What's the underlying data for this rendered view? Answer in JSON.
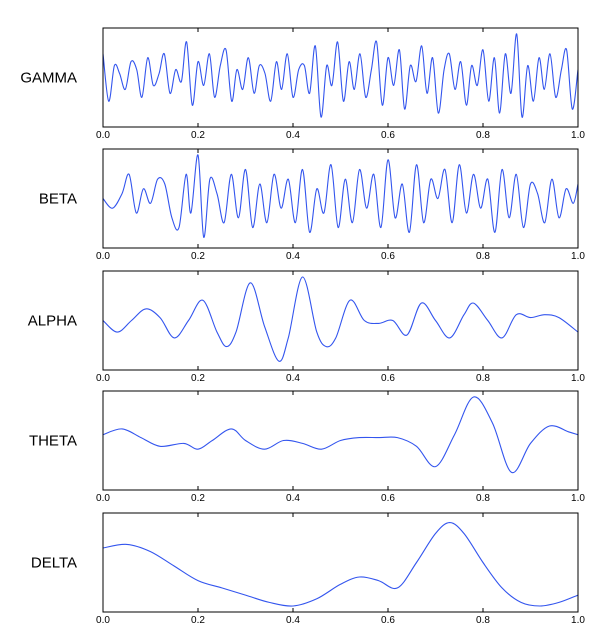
{
  "chart_data": [
    {
      "type": "line",
      "title": "",
      "ylabel": "GAMMA",
      "xlim": [
        0.0,
        1.0
      ],
      "xticks": [
        "0.0",
        "0.2",
        "0.4",
        "0.6",
        "0.8",
        "1.0"
      ],
      "grid": false,
      "series_color": "#3355ee",
      "note_y_scale_hidden": true,
      "series": [
        {
          "x": [
            0,
            0.012,
            0.024,
            0.035,
            0.047,
            0.059,
            0.071,
            0.082,
            0.094,
            0.106,
            0.118,
            0.129,
            0.141,
            0.153,
            0.165,
            0.176,
            0.188,
            0.2,
            0.212,
            0.224,
            0.235,
            0.247,
            0.259,
            0.271,
            0.282,
            0.294,
            0.306,
            0.318,
            0.329,
            0.341,
            0.353,
            0.365,
            0.376,
            0.388,
            0.4,
            0.412,
            0.424,
            0.435,
            0.447,
            0.459,
            0.471,
            0.482,
            0.494,
            0.506,
            0.518,
            0.529,
            0.541,
            0.553,
            0.565,
            0.576,
            0.588,
            0.6,
            0.612,
            0.624,
            0.635,
            0.647,
            0.659,
            0.671,
            0.682,
            0.694,
            0.706,
            0.718,
            0.729,
            0.741,
            0.753,
            0.765,
            0.776,
            0.788,
            0.8,
            0.812,
            0.824,
            0.835,
            0.847,
            0.859,
            0.871,
            0.882,
            0.894,
            0.906,
            0.918,
            0.929,
            0.941,
            0.953,
            0.965,
            0.976,
            0.988,
            1.0
          ],
          "y": [
            0.6,
            -0.6,
            0.3,
            0.1,
            -0.3,
            0.4,
            0.2,
            -0.5,
            0.5,
            -0.2,
            0.1,
            0.6,
            -0.4,
            0.2,
            -0.1,
            0.9,
            -0.7,
            0.4,
            -0.2,
            0.6,
            -0.5,
            0.3,
            0.7,
            -0.6,
            0.2,
            -0.3,
            0.5,
            -0.4,
            0.3,
            0.1,
            -0.6,
            0.4,
            -0.3,
            0.6,
            -0.5,
            0.2,
            0.3,
            -0.4,
            0.8,
            -1.0,
            0.3,
            -0.2,
            0.9,
            -0.6,
            0.4,
            -0.3,
            0.6,
            -0.5,
            0.2,
            0.9,
            -0.7,
            0.5,
            -0.2,
            0.7,
            -0.8,
            0.3,
            -0.1,
            0.8,
            -0.4,
            0.5,
            -0.9,
            0.2,
            0.6,
            -0.3,
            0.4,
            -0.7,
            0.3,
            -0.2,
            0.7,
            -0.6,
            0.5,
            -0.9,
            0.6,
            -0.4,
            1.1,
            -1.0,
            0.3,
            -0.6,
            0.5,
            -0.3,
            0.6,
            -0.5,
            0.2,
            0.7,
            -0.8,
            0.2
          ]
        }
      ]
    },
    {
      "type": "line",
      "title": "",
      "ylabel": "BETA",
      "xlim": [
        0.0,
        1.0
      ],
      "xticks": [
        "0.0",
        "0.2",
        "0.4",
        "0.6",
        "0.8",
        "1.0"
      ],
      "grid": false,
      "series_color": "#3355ee",
      "note_y_scale_hidden": true,
      "series": [
        {
          "x": [
            0,
            0.02,
            0.04,
            0.055,
            0.07,
            0.085,
            0.1,
            0.115,
            0.13,
            0.145,
            0.16,
            0.175,
            0.185,
            0.2,
            0.212,
            0.225,
            0.24,
            0.255,
            0.27,
            0.285,
            0.3,
            0.315,
            0.33,
            0.345,
            0.36,
            0.375,
            0.39,
            0.405,
            0.42,
            0.435,
            0.45,
            0.465,
            0.48,
            0.495,
            0.51,
            0.525,
            0.54,
            0.555,
            0.57,
            0.585,
            0.6,
            0.615,
            0.63,
            0.645,
            0.66,
            0.675,
            0.69,
            0.705,
            0.72,
            0.735,
            0.75,
            0.765,
            0.78,
            0.795,
            0.81,
            0.825,
            0.84,
            0.855,
            0.87,
            0.885,
            0.9,
            0.915,
            0.93,
            0.945,
            0.96,
            0.975,
            0.99,
            1.0
          ],
          "y": [
            0.0,
            -0.2,
            0.1,
            0.5,
            -0.3,
            0.2,
            -0.1,
            0.4,
            0.3,
            -0.4,
            -0.6,
            0.5,
            -0.3,
            0.9,
            -0.8,
            0.4,
            0.1,
            -0.5,
            0.5,
            -0.4,
            0.6,
            -0.6,
            0.3,
            -0.5,
            0.5,
            -0.2,
            0.4,
            -0.5,
            0.6,
            -0.7,
            0.2,
            -0.3,
            0.7,
            -0.6,
            0.4,
            -0.5,
            0.6,
            -0.2,
            0.5,
            -0.6,
            0.8,
            -0.4,
            0.3,
            -0.7,
            0.7,
            -0.5,
            0.4,
            0.0,
            0.6,
            -0.5,
            0.7,
            -0.3,
            0.5,
            -0.2,
            0.4,
            -0.7,
            0.6,
            -0.4,
            0.5,
            -0.6,
            0.3,
            0.1,
            -0.5,
            0.4,
            -0.4,
            0.2,
            -0.1,
            0.3
          ]
        }
      ]
    },
    {
      "type": "line",
      "title": "",
      "ylabel": "ALPHA",
      "xlim": [
        0.0,
        1.0
      ],
      "xticks": [
        "0.0",
        "0.2",
        "0.4",
        "0.6",
        "0.8",
        "1.0"
      ],
      "grid": false,
      "series_color": "#3355ee",
      "note_y_scale_hidden": true,
      "series": [
        {
          "x": [
            0,
            0.03,
            0.06,
            0.09,
            0.12,
            0.15,
            0.18,
            0.21,
            0.24,
            0.26,
            0.28,
            0.31,
            0.34,
            0.37,
            0.39,
            0.42,
            0.45,
            0.47,
            0.49,
            0.52,
            0.55,
            0.58,
            0.61,
            0.64,
            0.67,
            0.7,
            0.73,
            0.76,
            0.78,
            0.81,
            0.84,
            0.87,
            0.9,
            0.93,
            0.96,
            1.0
          ],
          "y": [
            0.0,
            -0.2,
            0.0,
            0.2,
            0.05,
            -0.3,
            0.0,
            0.35,
            -0.2,
            -0.45,
            -0.2,
            0.65,
            -0.1,
            -0.7,
            -0.3,
            0.75,
            -0.2,
            -0.45,
            -0.3,
            0.35,
            0.0,
            -0.05,
            0.0,
            -0.25,
            0.3,
            0.0,
            -0.3,
            0.1,
            0.3,
            0.0,
            -0.3,
            0.1,
            0.05,
            0.1,
            0.05,
            -0.2
          ]
        }
      ]
    },
    {
      "type": "line",
      "title": "",
      "ylabel": "THETA",
      "xlim": [
        0.0,
        1.0
      ],
      "xticks": [
        "0.0",
        "0.2",
        "0.4",
        "0.6",
        "0.8",
        "1.0"
      ],
      "grid": false,
      "series_color": "#3355ee",
      "note_y_scale_hidden": true,
      "series": [
        {
          "x": [
            0,
            0.04,
            0.08,
            0.12,
            0.17,
            0.2,
            0.23,
            0.27,
            0.3,
            0.34,
            0.38,
            0.42,
            0.46,
            0.5,
            0.54,
            0.58,
            0.62,
            0.66,
            0.7,
            0.74,
            0.78,
            0.82,
            0.86,
            0.9,
            0.94,
            0.98,
            1.0
          ],
          "y": [
            0.1,
            0.2,
            0.05,
            -0.1,
            -0.05,
            -0.15,
            0.0,
            0.2,
            0.0,
            -0.15,
            0.0,
            -0.05,
            -0.15,
            0.0,
            0.05,
            0.05,
            0.05,
            -0.1,
            -0.45,
            0.1,
            0.75,
            0.3,
            -0.55,
            -0.05,
            0.25,
            0.15,
            0.1
          ]
        }
      ]
    },
    {
      "type": "line",
      "title": "",
      "ylabel": "DELTA",
      "xlim": [
        0.0,
        1.0
      ],
      "xticks": [
        "0.0",
        "0.2",
        "0.4",
        "0.6",
        "0.8",
        "1.0"
      ],
      "grid": false,
      "series_color": "#3355ee",
      "note_y_scale_hidden": true,
      "series": [
        {
          "x": [
            0,
            0.05,
            0.1,
            0.15,
            0.2,
            0.25,
            0.3,
            0.35,
            0.4,
            0.45,
            0.5,
            0.54,
            0.58,
            0.62,
            0.66,
            0.7,
            0.73,
            0.76,
            0.8,
            0.84,
            0.88,
            0.92,
            0.96,
            1.0
          ],
          "y": [
            0.2,
            0.25,
            0.15,
            -0.05,
            -0.25,
            -0.35,
            -0.45,
            -0.55,
            -0.6,
            -0.5,
            -0.3,
            -0.2,
            -0.25,
            -0.35,
            0.0,
            0.4,
            0.55,
            0.4,
            0.0,
            -0.35,
            -0.55,
            -0.6,
            -0.55,
            -0.45
          ]
        }
      ]
    }
  ]
}
